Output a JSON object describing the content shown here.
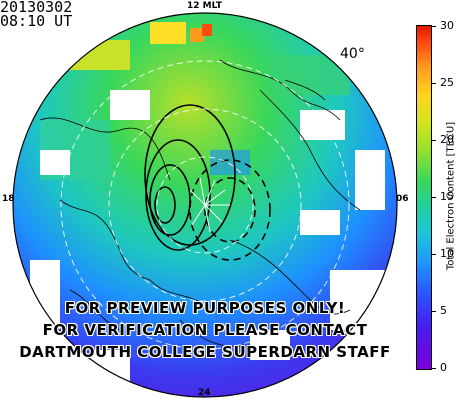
{
  "header": {
    "date": "20130302",
    "time": "08:10 UT"
  },
  "map": {
    "mlt_labels": {
      "top": "12 MLT",
      "bottom": "24",
      "left": "18",
      "right": "06"
    },
    "lat_label": "40°",
    "watermark_lines": [
      "FOR PREVIEW PURPOSES ONLY!",
      "FOR VERIFICATION PLEASE CONTACT",
      "DARTMOUTH COLLEGE SUPERDARN STAFF"
    ]
  },
  "colorbar": {
    "title": "Total Electron Content [TECU]",
    "min": 0,
    "max": 30,
    "ticks": [
      "30",
      "25",
      "20",
      "15",
      "10",
      "5",
      "0"
    ]
  },
  "colors": {
    "low": "#7b00d8",
    "mid_low": "#2a55ff",
    "mid": "#1ec8d8",
    "mid_high": "#3ad75a",
    "high": "#ffd21e",
    "max": "#e41a00"
  }
}
